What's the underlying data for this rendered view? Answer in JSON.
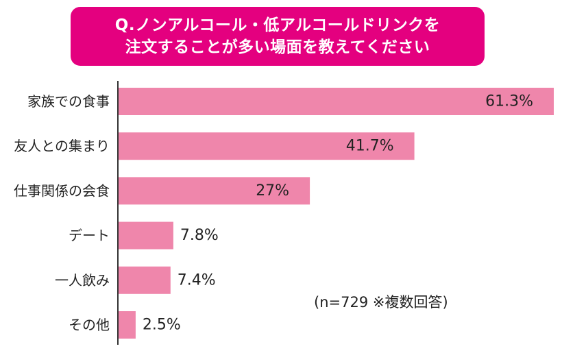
{
  "title": {
    "line1": "Q.ノンアルコール・低アルコールドリンクを",
    "line2": "注文することが多い場面を教えてください"
  },
  "note": "(n=729 ※複数回答)",
  "colors": {
    "title_bg": "#e4007f",
    "bar": "#ef86ab",
    "axis": "#333333",
    "text": "#222222"
  },
  "chart_data": {
    "type": "bar",
    "orientation": "horizontal",
    "categories": [
      "家族での食事",
      "友人との集まり",
      "仕事関係の会食",
      "デート",
      "一人飲み",
      "その他"
    ],
    "values": [
      61.3,
      41.7,
      27,
      7.8,
      7.4,
      2.5
    ],
    "value_labels": [
      "61.3%",
      "41.7%",
      "27%",
      "7.8%",
      "7.4%",
      "2.5%"
    ],
    "unit": "%",
    "xlim": [
      0,
      61.3
    ],
    "grid": false,
    "legend": "none"
  }
}
